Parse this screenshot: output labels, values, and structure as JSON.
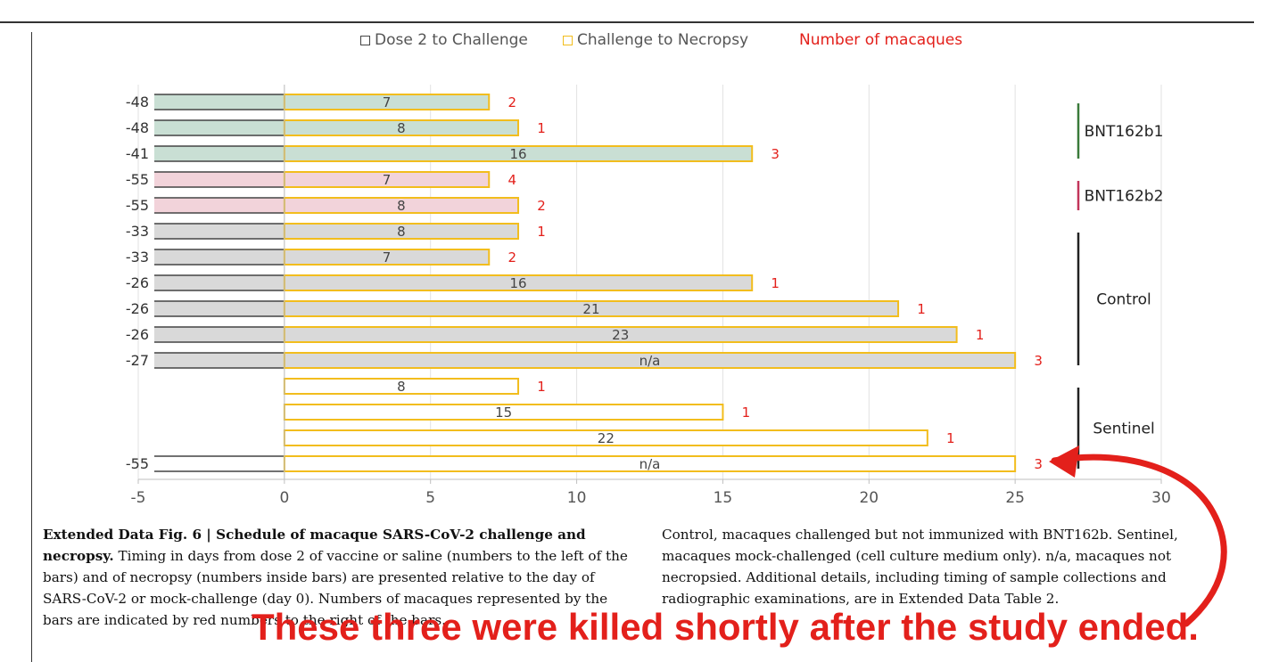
{
  "legend": {
    "dose2": "Dose 2 to Challenge",
    "challenge": "Challenge to Necropsy",
    "macaques": "Number of macaques"
  },
  "colors": {
    "bnt162b1": "#c9dfd4",
    "bnt162b2": "#f2d3da",
    "control": "#d9d9d9",
    "sentinel": "#ffffff",
    "bar_border": "#f2bd1d",
    "dose_bar_border": "#444444",
    "red": "#e3201b",
    "bracket_b1": "#3a7a3a",
    "bracket_b2": "#c2355a",
    "bracket_other": "#222222"
  },
  "chart_data": {
    "type": "bar",
    "orientation": "horizontal",
    "xlim": [
      -5,
      30
    ],
    "xticks": [
      -5,
      0,
      5,
      10,
      15,
      20,
      25,
      30
    ],
    "grid": "vertical",
    "legend_position": "top",
    "series": [
      {
        "name": "Dose 2 to Challenge",
        "type": "stacked-left"
      },
      {
        "name": "Challenge to Necropsy",
        "type": "bar"
      },
      {
        "name": "Number of macaques",
        "type": "label"
      }
    ],
    "rows": [
      {
        "dose_label": "-48",
        "necropsy": 7,
        "inside_label": "7",
        "count": "2",
        "group": "bnt162b1"
      },
      {
        "dose_label": "-48",
        "necropsy": 8,
        "inside_label": "8",
        "count": "1",
        "group": "bnt162b1"
      },
      {
        "dose_label": "-41",
        "necropsy": 16,
        "inside_label": "16",
        "count": "3",
        "group": "bnt162b1"
      },
      {
        "dose_label": "-55",
        "necropsy": 7,
        "inside_label": "7",
        "count": "4",
        "group": "bnt162b2"
      },
      {
        "dose_label": "-55",
        "necropsy": 8,
        "inside_label": "8",
        "count": "2",
        "group": "bnt162b2"
      },
      {
        "dose_label": "-33",
        "necropsy": 8,
        "inside_label": "8",
        "count": "1",
        "group": "control"
      },
      {
        "dose_label": "-33",
        "necropsy": 7,
        "inside_label": "7",
        "count": "2",
        "group": "control"
      },
      {
        "dose_label": "-26",
        "necropsy": 16,
        "inside_label": "16",
        "count": "1",
        "group": "control"
      },
      {
        "dose_label": "-26",
        "necropsy": 21,
        "inside_label": "21",
        "count": "1",
        "group": "control"
      },
      {
        "dose_label": "-26",
        "necropsy": 23,
        "inside_label": "23",
        "count": "1",
        "group": "control"
      },
      {
        "dose_label": "-27",
        "necropsy": 25,
        "inside_label": "n/a",
        "count": "3",
        "group": "control"
      },
      {
        "dose_label": "",
        "necropsy": 8,
        "inside_label": "8",
        "count": "1",
        "group": "sentinel"
      },
      {
        "dose_label": "",
        "necropsy": 15,
        "inside_label": "15",
        "count": "1",
        "group": "sentinel"
      },
      {
        "dose_label": "",
        "necropsy": 22,
        "inside_label": "22",
        "count": "1",
        "group": "sentinel"
      },
      {
        "dose_label": "-55",
        "necropsy": 25,
        "inside_label": "n/a",
        "count": "3",
        "group": "sentinel"
      }
    ],
    "groups": [
      {
        "key": "bnt162b1",
        "label": "BNT162b1",
        "rows": [
          0,
          2
        ]
      },
      {
        "key": "bnt162b2",
        "label": "BNT162b2",
        "rows": [
          3,
          4
        ]
      },
      {
        "key": "control",
        "label": "Control",
        "rows": [
          5,
          10
        ]
      },
      {
        "key": "sentinel",
        "label": "Sentinel",
        "rows": [
          11,
          14
        ]
      }
    ]
  },
  "caption_left": {
    "title": "Extended Data Fig. 6 | Schedule of macaque SARS-CoV-2 challenge and necropsy.",
    "body": " Timing in days from dose 2 of vaccine or saline (numbers to the left of the bars) and of necropsy (numbers inside bars) are presented relative to the day of SARS-CoV-2 or mock-challenge (day 0). Numbers of macaques represented by the bars are indicated by red numbers to the right of the bars."
  },
  "caption_right": "Control, macaques challenged but not immunized with BNT162b. Sentinel, macaques mock-challenged (cell culture medium only). n/a, macaques not necropsied. Additional details, including timing of sample collections and radiographic examinations, are in Extended Data Table 2.",
  "annotation": "These three were killed shortly after the study ended."
}
